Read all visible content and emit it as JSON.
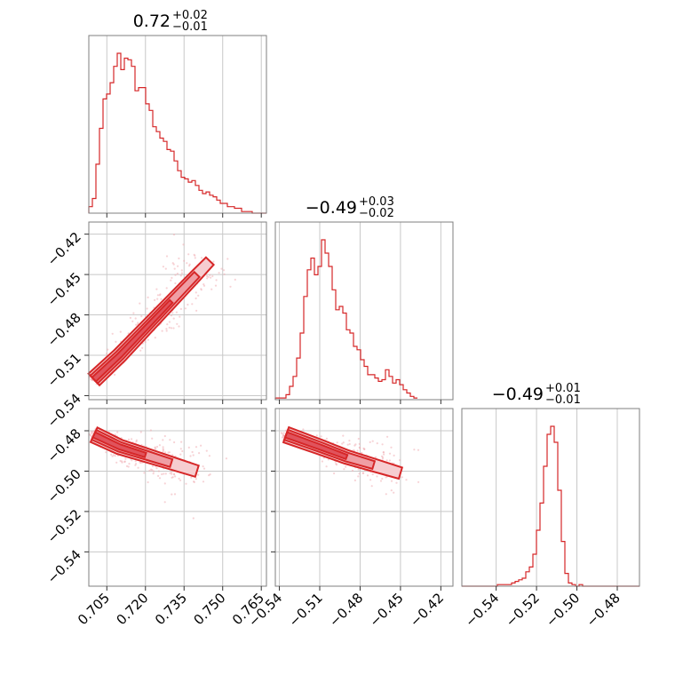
{
  "chart_data": {
    "type": "corner",
    "color": "#d62728",
    "parameters": 3,
    "titles": [
      {
        "value": "0.72",
        "plus": "+0.02",
        "minus": "−0.01"
      },
      {
        "value": "−0.49",
        "plus": "+0.03",
        "minus": "−0.02"
      },
      {
        "value": "−0.49",
        "plus": "+0.01",
        "minus": "−0.01"
      }
    ],
    "axes": [
      {
        "range": [
          0.698,
          0.767
        ],
        "ticks": [
          0.705,
          0.72,
          0.735,
          0.75,
          0.765
        ],
        "tick_labels": [
          "0.705",
          "0.720",
          "0.735",
          "0.750",
          "0.765"
        ]
      },
      {
        "range": [
          -0.543,
          -0.411
        ],
        "ticks": [
          -0.54,
          -0.51,
          -0.48,
          -0.45,
          -0.42
        ],
        "tick_labels": [
          "−0.54",
          "−0.51",
          "−0.48",
          "−0.45",
          "−0.42"
        ]
      },
      {
        "range": [
          -0.557,
          -0.469
        ],
        "ticks": [
          -0.54,
          -0.52,
          -0.5,
          -0.48
        ],
        "tick_labels": [
          "−0.54",
          "−0.52",
          "−0.50",
          "−0.48"
        ]
      }
    ],
    "histograms": [
      {
        "param": 0,
        "edges_start": 0.698,
        "bin_width": 0.00138,
        "counts": [
          4,
          9,
          30,
          52,
          70,
          73,
          80,
          90,
          98,
          88,
          95,
          94,
          90,
          75,
          77,
          77,
          67,
          63,
          53,
          50,
          46,
          44,
          39,
          38,
          32,
          26,
          22,
          21,
          19,
          20,
          17,
          14,
          12,
          13,
          11,
          10,
          8,
          6,
          6,
          4,
          4,
          3,
          3,
          1,
          1,
          1,
          0,
          0,
          0,
          0
        ]
      },
      {
        "param": 1,
        "edges_start": -0.543,
        "bin_width": 0.00264,
        "counts": [
          1,
          1,
          1,
          3,
          8,
          14,
          25,
          40,
          62,
          78,
          85,
          75,
          80,
          96,
          88,
          80,
          66,
          54,
          56,
          52,
          42,
          40,
          32,
          30,
          24,
          20,
          15,
          15,
          13,
          11,
          12,
          18,
          14,
          10,
          12,
          9,
          6,
          4,
          2,
          1
        ]
      },
      {
        "param": 2,
        "edges_start": -0.557,
        "bin_width": 0.00176,
        "counts": [
          0,
          0,
          0,
          0,
          0,
          0,
          0,
          0,
          0,
          0,
          1,
          1,
          1,
          1,
          2,
          3,
          4,
          5,
          9,
          12,
          20,
          35,
          52,
          75,
          95,
          100,
          90,
          60,
          28,
          8,
          2,
          1,
          0,
          1,
          0,
          0,
          0,
          0,
          0,
          0,
          0,
          0,
          0,
          0,
          0,
          0,
          0,
          0,
          0,
          0
        ]
      }
    ],
    "pairs": [
      {
        "x_param": 0,
        "y_param": 1,
        "trend_points": [
          [
            0.7,
            -0.528
          ],
          [
            0.71,
            -0.51
          ],
          [
            0.72,
            -0.49
          ],
          [
            0.73,
            -0.47
          ],
          [
            0.74,
            -0.45
          ],
          [
            0.745,
            -0.44
          ]
        ]
      },
      {
        "x_param": 0,
        "y_param": 2,
        "trend_points": [
          [
            0.7,
            -0.482
          ],
          [
            0.71,
            -0.488
          ],
          [
            0.72,
            -0.492
          ],
          [
            0.73,
            -0.496
          ],
          [
            0.74,
            -0.5
          ]
        ]
      },
      {
        "x_param": 1,
        "y_param": 2,
        "trend_points": [
          [
            -0.535,
            -0.482
          ],
          [
            -0.51,
            -0.488
          ],
          [
            -0.49,
            -0.493
          ],
          [
            -0.47,
            -0.497
          ],
          [
            -0.45,
            -0.501
          ]
        ]
      }
    ]
  }
}
